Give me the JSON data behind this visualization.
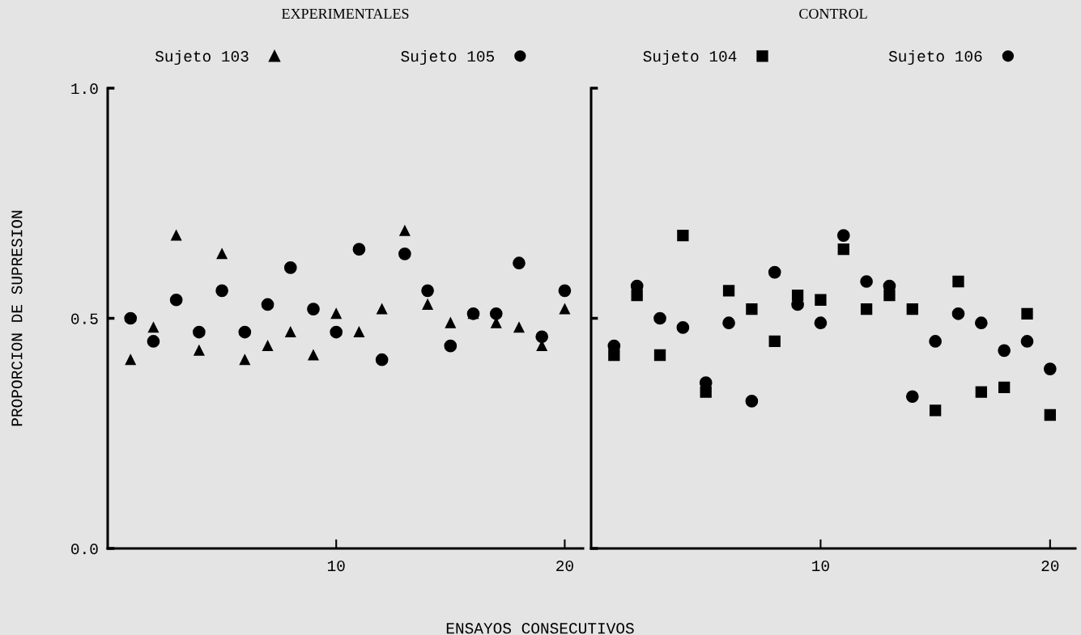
{
  "chart_data": [
    {
      "type": "scatter",
      "title": "EXPERIMENTALES",
      "ylabel": "PROPORCION DE SUPRESION",
      "xlabel": "ENSAYOS CONSECUTIVOS",
      "x": [
        1,
        2,
        3,
        4,
        5,
        6,
        7,
        8,
        9,
        10,
        11,
        12,
        13,
        14,
        15,
        16,
        17,
        18,
        19,
        20
      ],
      "series": [
        {
          "name": "Sujeto 103",
          "color": "#000000",
          "marker": "triangle",
          "values": [
            0.41,
            0.48,
            0.68,
            0.43,
            0.64,
            0.41,
            0.44,
            0.47,
            0.42,
            0.51,
            0.47,
            0.52,
            0.69,
            0.53,
            0.49,
            0.51,
            0.49,
            0.48,
            0.44,
            0.52
          ]
        },
        {
          "name": "Sujeto 105",
          "color": "#000000",
          "marker": "circle",
          "values": [
            0.5,
            0.45,
            0.54,
            0.47,
            0.56,
            0.47,
            0.53,
            0.61,
            0.52,
            0.47,
            0.65,
            0.41,
            0.64,
            0.56,
            0.44,
            0.51,
            0.51,
            0.62,
            0.46,
            0.56
          ]
        }
      ],
      "xlim": [
        0,
        20.8
      ],
      "xticks": [
        10,
        20
      ],
      "ylim": [
        0,
        1.0
      ],
      "yticks": [
        {
          "value": 0,
          "label": "0.0"
        },
        {
          "value": 0.5,
          "label": "0.5"
        },
        {
          "value": 1.0,
          "label": "1.0"
        }
      ],
      "legend": "top",
      "grid": false
    },
    {
      "type": "scatter",
      "title": "CONTROL",
      "x": [
        1,
        2,
        3,
        4,
        5,
        6,
        7,
        8,
        9,
        10,
        11,
        12,
        13,
        14,
        15,
        16,
        17,
        18,
        19,
        20
      ],
      "series": [
        {
          "name": "Sujeto 104",
          "color": "#000000",
          "marker": "square",
          "values": [
            0.42,
            0.55,
            0.42,
            0.68,
            0.34,
            0.56,
            0.52,
            0.45,
            0.55,
            0.54,
            0.65,
            0.52,
            0.55,
            0.52,
            0.3,
            0.58,
            0.34,
            0.35,
            0.51,
            0.29
          ]
        },
        {
          "name": "Sujeto 106",
          "color": "#000000",
          "marker": "circle",
          "values": [
            0.44,
            0.57,
            0.5,
            0.48,
            0.36,
            0.49,
            0.32,
            0.6,
            0.53,
            0.49,
            0.68,
            0.58,
            0.57,
            0.33,
            0.45,
            0.51,
            0.49,
            0.43,
            0.45,
            0.39
          ]
        }
      ],
      "xlim": [
        0,
        21.1
      ],
      "xticks": [
        10,
        20
      ],
      "ylim": [
        0,
        1.0
      ],
      "yticks": [
        {
          "value": 0,
          "label": null
        },
        {
          "value": 0.5,
          "label": null
        },
        {
          "value": 1.0,
          "label": null
        }
      ],
      "tick_labels": "x",
      "legend": "top",
      "grid": false
    }
  ]
}
